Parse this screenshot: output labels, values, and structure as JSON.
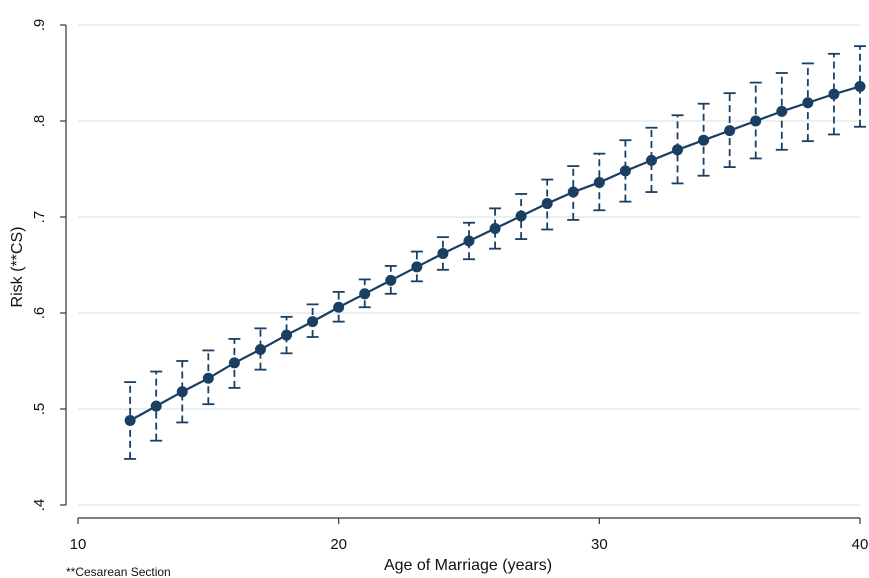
{
  "chart_data": {
    "type": "line",
    "xlabel": "Age of Marriage (years)",
    "ylabel": "Risk (**CS)",
    "note": "**Cesarean Section",
    "xlim": [
      10,
      40
    ],
    "ylim": [
      0.4,
      0.9
    ],
    "x_ticks": [
      10,
      20,
      30,
      40
    ],
    "x_tick_labels": [
      "10",
      "20",
      "30",
      "40"
    ],
    "y_ticks": [
      0.4,
      0.5,
      0.6,
      0.7,
      0.8,
      0.9
    ],
    "y_tick_labels": [
      ".4",
      ".5",
      ".6",
      ".7",
      ".8",
      ".9"
    ],
    "grid": "horizontal",
    "error_bars": true,
    "colors": {
      "series": "#1a3f63",
      "grid": "#dde6ea",
      "axis": "#333333"
    },
    "series": [
      {
        "x": [
          12,
          13,
          14,
          15,
          16,
          17,
          18,
          19,
          20,
          21,
          22,
          23,
          24,
          25,
          26,
          27,
          28,
          29,
          30,
          31,
          32,
          33,
          34,
          35,
          36,
          37,
          38,
          39,
          40
        ],
        "values": [
          0.488,
          0.503,
          0.518,
          0.532,
          0.548,
          0.562,
          0.577,
          0.591,
          0.606,
          0.62,
          0.634,
          0.648,
          0.662,
          0.675,
          0.688,
          0.701,
          0.714,
          0.726,
          0.736,
          0.748,
          0.759,
          0.77,
          0.78,
          0.79,
          0.8,
          0.81,
          0.819,
          0.828,
          0.836
        ],
        "lower": [
          0.448,
          0.467,
          0.486,
          0.505,
          0.522,
          0.541,
          0.558,
          0.575,
          0.591,
          0.606,
          0.62,
          0.633,
          0.645,
          0.656,
          0.667,
          0.677,
          0.687,
          0.697,
          0.707,
          0.716,
          0.726,
          0.735,
          0.743,
          0.752,
          0.761,
          0.77,
          0.779,
          0.786,
          0.794
        ],
        "upper": [
          0.528,
          0.539,
          0.55,
          0.561,
          0.573,
          0.584,
          0.596,
          0.609,
          0.622,
          0.635,
          0.649,
          0.664,
          0.679,
          0.694,
          0.709,
          0.724,
          0.739,
          0.753,
          0.766,
          0.78,
          0.793,
          0.806,
          0.818,
          0.829,
          0.84,
          0.85,
          0.86,
          0.87,
          0.878
        ]
      }
    ]
  }
}
